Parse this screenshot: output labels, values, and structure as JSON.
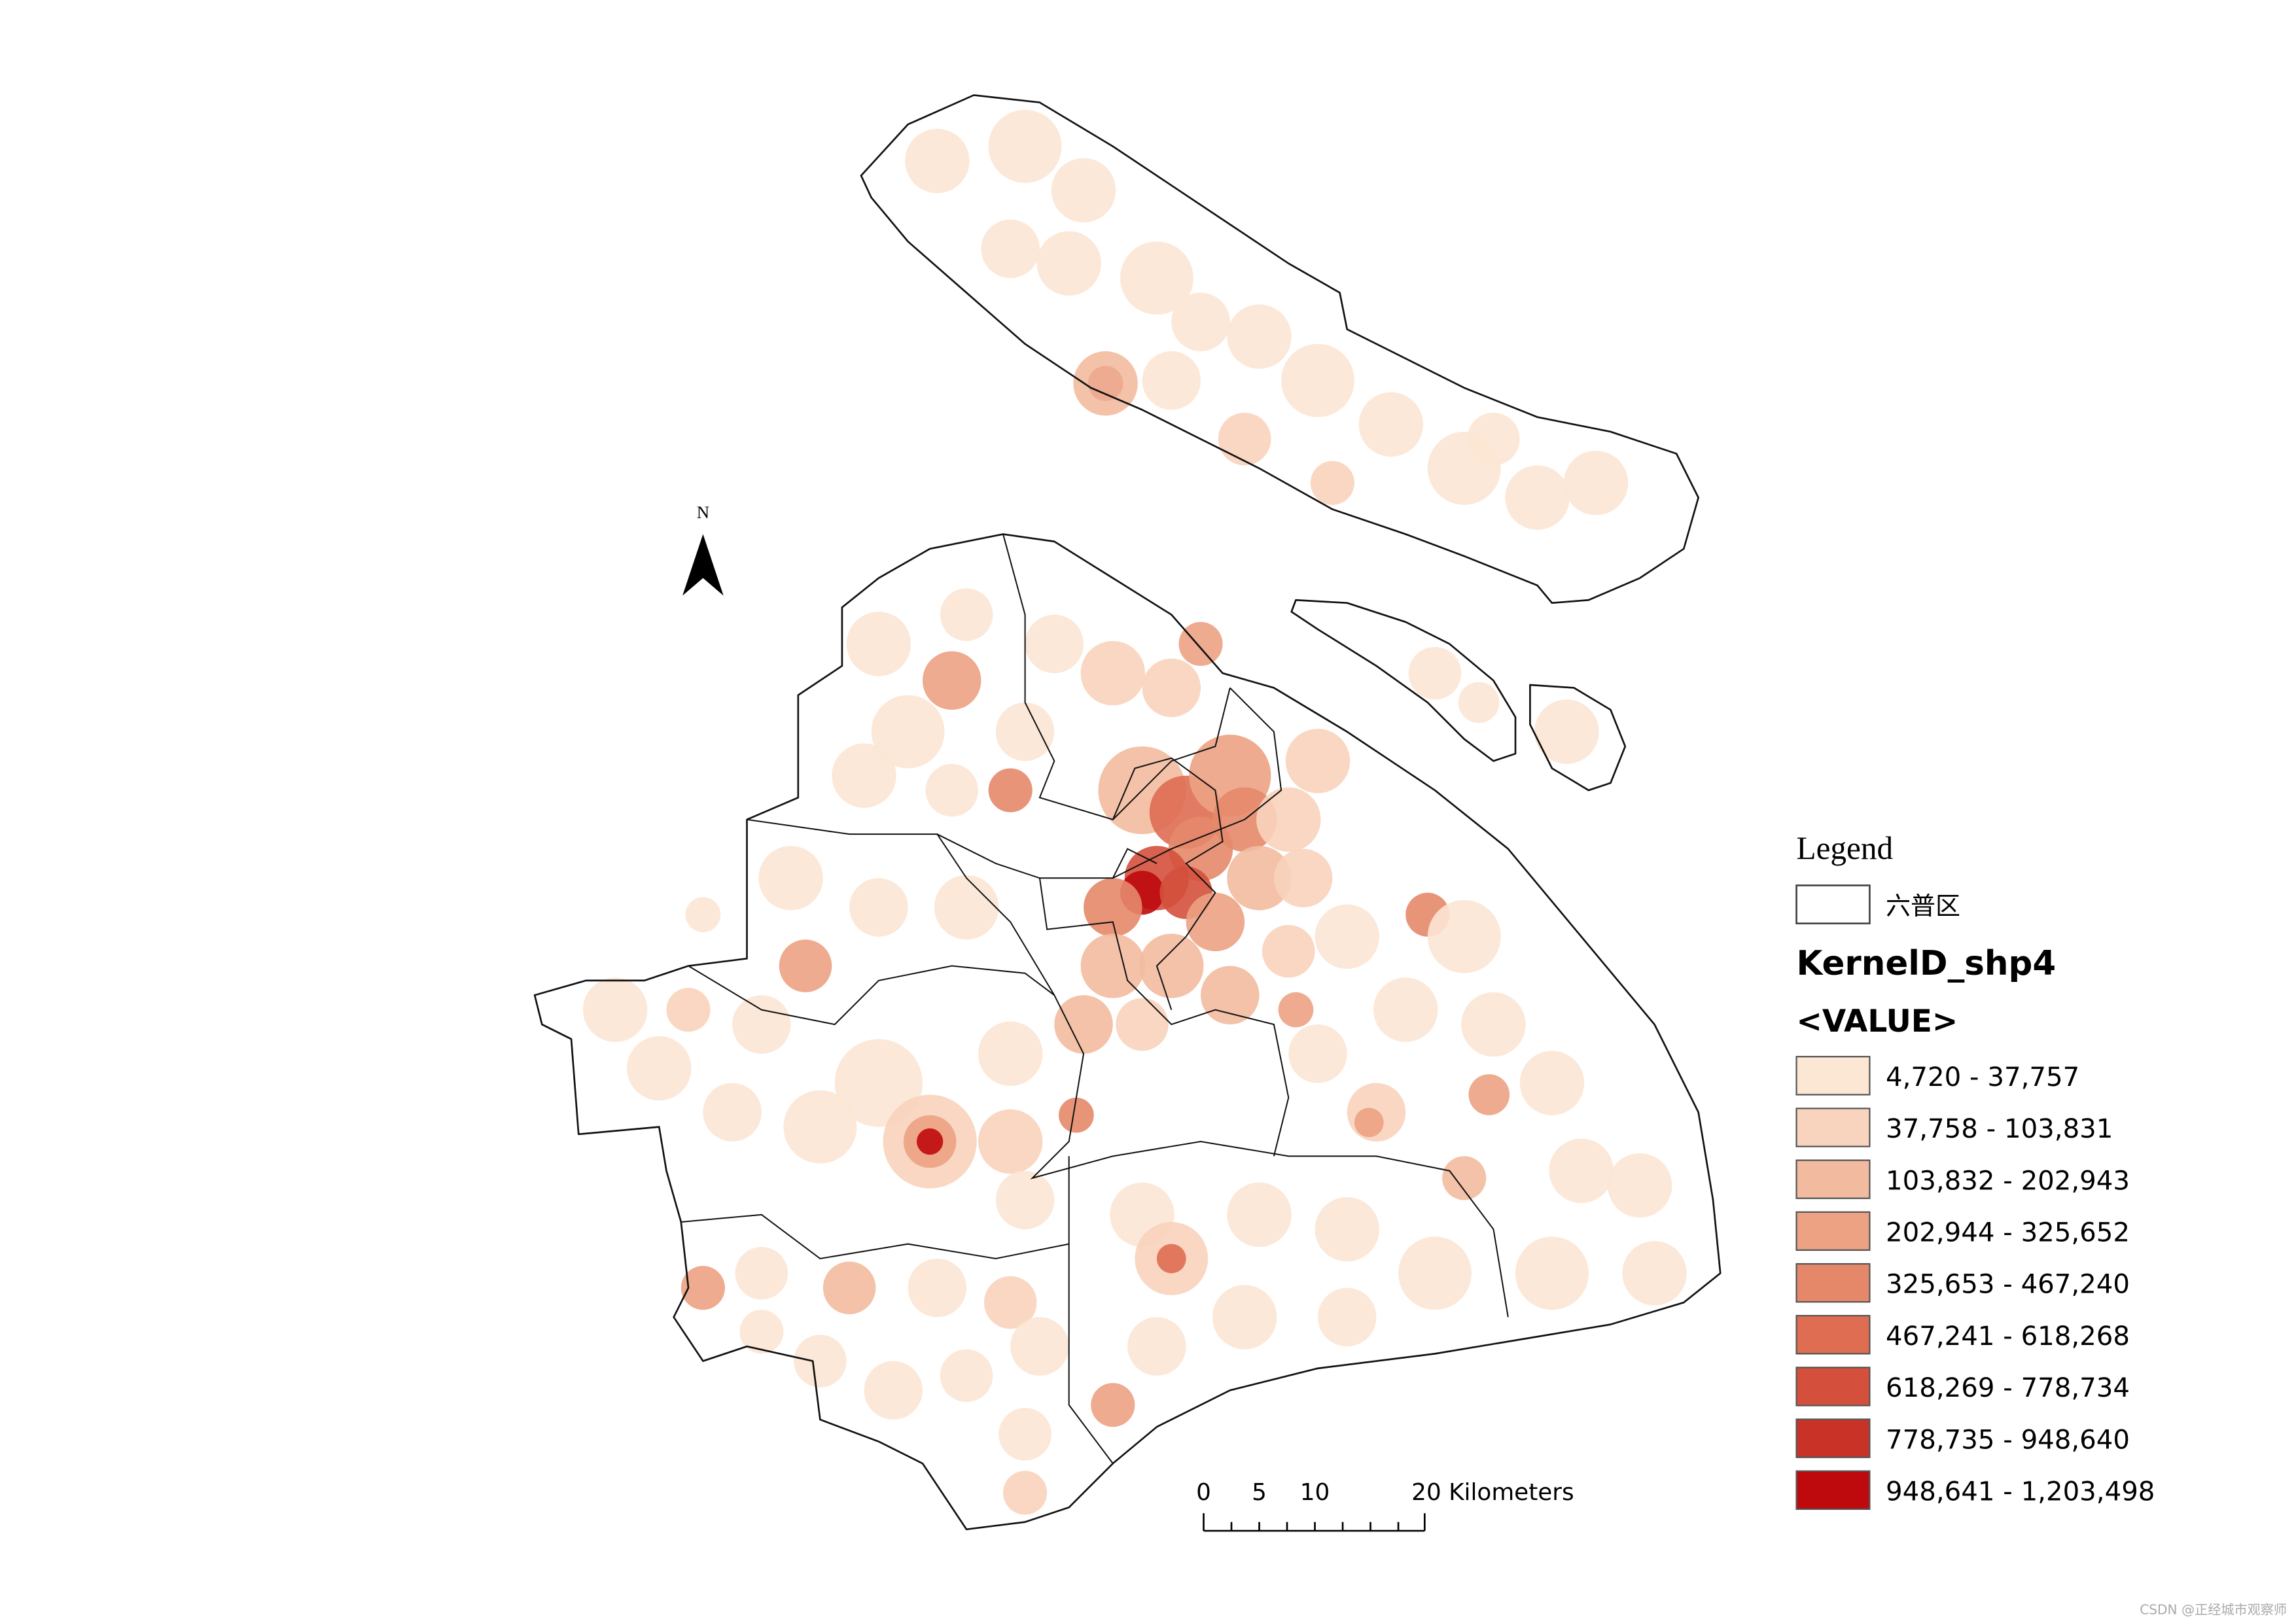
{
  "legend": {
    "title": "Legend",
    "layer_name": "六普区",
    "raster_name": "KernelD_shp4",
    "field": "<VALUE>",
    "classes": [
      {
        "label": "4,720 - 37,757",
        "color": "#fce6d4"
      },
      {
        "label": "37,758 - 103,831",
        "color": "#f8d3bd"
      },
      {
        "label": "103,832 - 202,943",
        "color": "#f2bb9f"
      },
      {
        "label": "202,944 - 325,652",
        "color": "#eca283"
      },
      {
        "label": "325,653 - 467,240",
        "color": "#e5886a"
      },
      {
        "label": "467,241 - 618,268",
        "color": "#de6d52"
      },
      {
        "label": "618,269 - 778,734",
        "color": "#d4503c"
      },
      {
        "label": "778,735 - 948,640",
        "color": "#c93327"
      },
      {
        "label": "948,641 - 1,203,498",
        "color": "#be0a0d"
      }
    ]
  },
  "north_arrow": {
    "label": "N"
  },
  "scale_bar": {
    "labels": [
      "0",
      "5",
      "10",
      "20 Kilometers"
    ]
  },
  "watermark": "CSDN @正经城市观察师"
}
